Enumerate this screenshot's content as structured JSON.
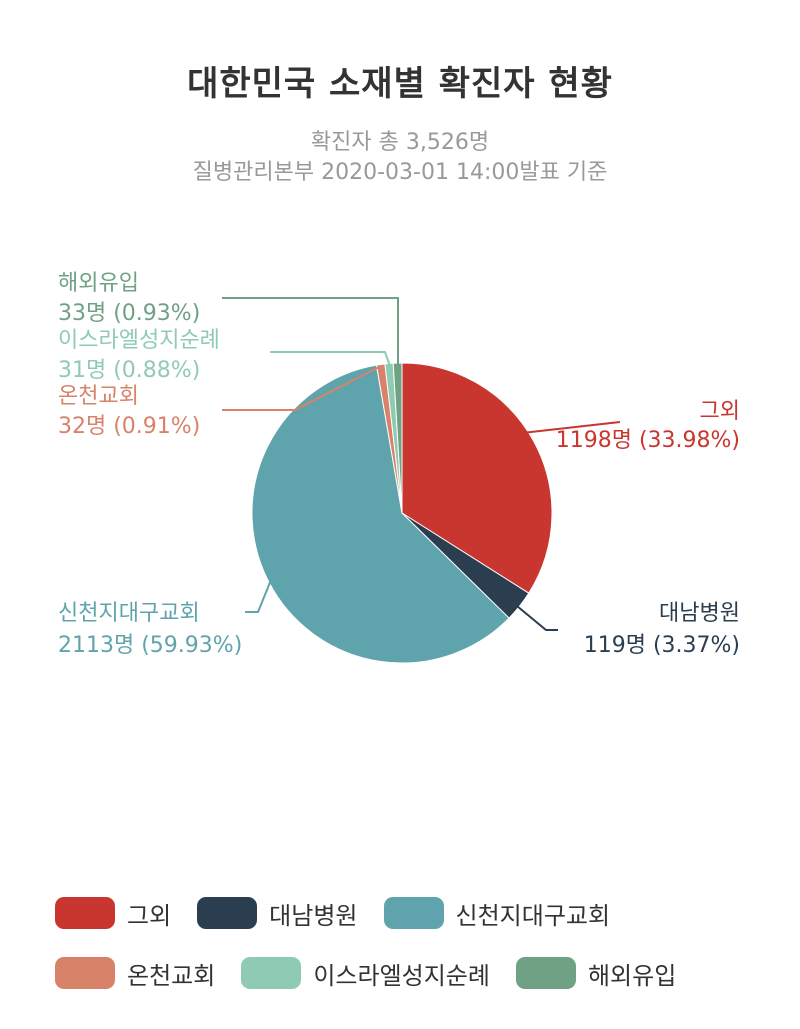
{
  "chart_data": {
    "type": "pie",
    "title": "대한민국 소재별 확진자 현황",
    "subtitle_lines": [
      "확진자 총 3,526명",
      "질병관리본부 2020-03-01 14:00발표 기준"
    ],
    "slices": [
      {
        "name": "그외",
        "value": 1198,
        "percent": 33.98,
        "color": "#c9362f",
        "label_line1": "그외",
        "label_line2": "1198명 (33.98%)"
      },
      {
        "name": "대남병원",
        "value": 119,
        "percent": 3.37,
        "color": "#2b3e50",
        "label_line1": "대남병원",
        "label_line2": "119명 (3.37%)"
      },
      {
        "name": "신천지대구교회",
        "value": 2113,
        "percent": 59.93,
        "color": "#5fa4ad",
        "label_line1": "신천지대구교회",
        "label_line2": "2113명 (59.93%)"
      },
      {
        "name": "온천교회",
        "value": 32,
        "percent": 0.91,
        "color": "#d9826a",
        "label_line1": "온천교회",
        "label_line2": "32명 (0.91%)"
      },
      {
        "name": "이스라엘성지순례",
        "value": 31,
        "percent": 0.88,
        "color": "#8fcbb2",
        "label_line1": "이스라엘성지순례",
        "label_line2": "31명 (0.88%)"
      },
      {
        "name": "해외유입",
        "value": 33,
        "percent": 0.93,
        "color": "#6fa184",
        "label_line1": "해외유입",
        "label_line2": "33명 (0.93%)"
      }
    ],
    "legend_placement": "bottom"
  }
}
